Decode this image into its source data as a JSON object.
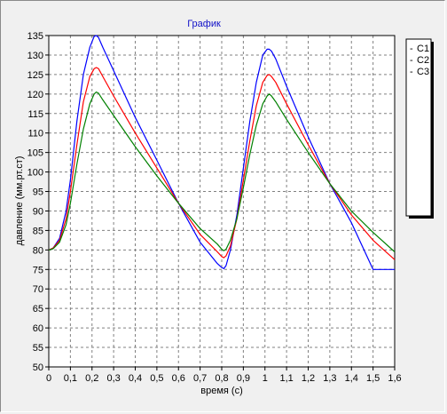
{
  "chart_data": {
    "type": "line",
    "title": "График",
    "xlabel": "время (с)",
    "ylabel": "давление (мм.рт.ст)",
    "xlim": [
      0,
      1.6
    ],
    "ylim": [
      50,
      135
    ],
    "xticks": [
      0,
      0.1,
      0.2,
      0.3,
      0.4,
      0.5,
      0.6,
      0.7,
      0.8,
      0.9,
      1,
      1.1,
      1.2,
      1.3,
      1.4,
      1.5,
      1.6
    ],
    "xtick_labels": [
      "0",
      "0,1",
      "0,2",
      "0,3",
      "0,4",
      "0,5",
      "0,6",
      "0,7",
      "0,8",
      "0,9",
      "1",
      "1,1",
      "1,2",
      "1,3",
      "1,4",
      "1,5",
      "1,6"
    ],
    "yticks": [
      50,
      55,
      60,
      65,
      70,
      75,
      80,
      85,
      90,
      95,
      100,
      105,
      110,
      115,
      120,
      125,
      130,
      135
    ],
    "grid": true,
    "legend_position": "right",
    "series": [
      {
        "name": "C1",
        "color": "#0000ff",
        "x": [
          0,
          0.02,
          0.05,
          0.08,
          0.1,
          0.13,
          0.16,
          0.19,
          0.21,
          0.22,
          0.23,
          0.25,
          0.3,
          0.4,
          0.5,
          0.6,
          0.7,
          0.78,
          0.8,
          0.81,
          0.82,
          0.84,
          0.87,
          0.9,
          0.93,
          0.96,
          0.99,
          1.01,
          1.02,
          1.03,
          1.05,
          1.1,
          1.2,
          1.3,
          1.35,
          1.4,
          1.5,
          1.6
        ],
        "y": [
          80,
          80.5,
          83,
          90,
          98,
          113,
          125,
          132,
          134.8,
          135,
          134.5,
          132,
          126,
          114,
          103,
          92,
          82,
          76.5,
          75.5,
          75.2,
          76,
          80,
          89,
          101,
          113,
          123,
          130,
          131.5,
          131.5,
          131,
          129,
          122,
          109,
          97,
          92,
          87,
          75,
          75
        ]
      },
      {
        "name": "C2",
        "color": "#ff0000",
        "x": [
          0,
          0.02,
          0.05,
          0.08,
          0.1,
          0.13,
          0.16,
          0.19,
          0.21,
          0.22,
          0.23,
          0.25,
          0.3,
          0.4,
          0.5,
          0.6,
          0.7,
          0.78,
          0.8,
          0.81,
          0.82,
          0.84,
          0.87,
          0.9,
          0.93,
          0.96,
          0.99,
          1.01,
          1.02,
          1.03,
          1.05,
          1.1,
          1.2,
          1.3,
          1.35,
          1.4,
          1.5,
          1.6
        ],
        "y": [
          80,
          80.5,
          82.5,
          88,
          95,
          107,
          118,
          124.5,
          126.5,
          126.8,
          126.5,
          124.5,
          119.5,
          110,
          101,
          92,
          84,
          79.5,
          78.3,
          78,
          78.5,
          81,
          88,
          98,
          108,
          117,
          123,
          124.8,
          125,
          124.5,
          123,
          117.5,
          107,
          97,
          93,
          89,
          82.5,
          77.5
        ]
      },
      {
        "name": "C3",
        "color": "#008000",
        "x": [
          0,
          0.02,
          0.05,
          0.08,
          0.1,
          0.13,
          0.16,
          0.19,
          0.21,
          0.22,
          0.23,
          0.25,
          0.3,
          0.4,
          0.5,
          0.6,
          0.7,
          0.78,
          0.8,
          0.81,
          0.82,
          0.84,
          0.87,
          0.9,
          0.93,
          0.96,
          0.99,
          1.01,
          1.02,
          1.03,
          1.05,
          1.1,
          1.2,
          1.3,
          1.35,
          1.4,
          1.5,
          1.6
        ],
        "y": [
          80,
          80.3,
          82,
          86.5,
          92,
          102,
          111,
          117.5,
          120,
          120.5,
          120.2,
          118.5,
          114.5,
          106.5,
          99,
          92,
          85.5,
          81.5,
          80.2,
          79.8,
          80.2,
          82.5,
          88,
          96,
          104.5,
          112,
          117.5,
          119.5,
          120,
          119.5,
          118,
          113.5,
          105,
          97,
          93.5,
          90,
          84.5,
          79.5
        ]
      }
    ]
  }
}
